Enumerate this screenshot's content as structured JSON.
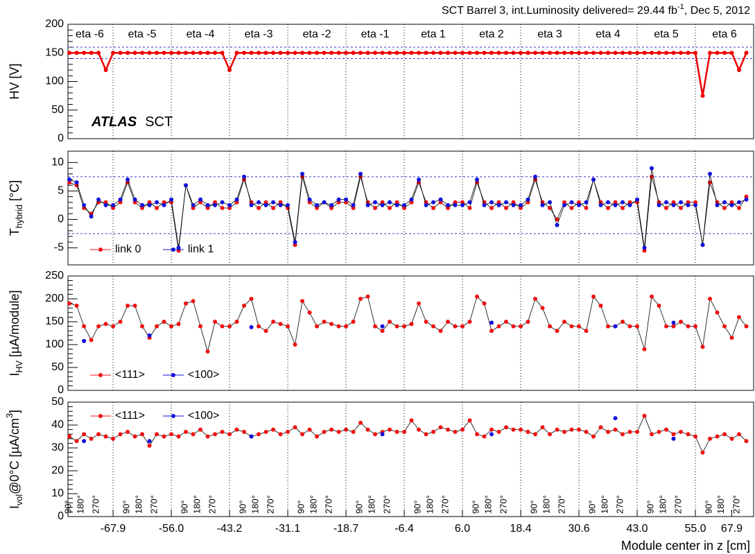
{
  "title": [
    "SCT Barrel 3, int.Luminosity delivered= 29.44 fb",
    "-1",
    ",  Dec 5, 2012"
  ],
  "title_sup": 1,
  "xlabel": "Module center in z [cm]",
  "brand": [
    "ATLAS",
    "SCT"
  ],
  "xlim": [
    1.8,
    96
  ],
  "x": [
    2,
    3,
    4,
    5,
    6,
    7,
    8,
    9,
    10,
    11,
    12,
    13,
    14,
    15,
    16,
    17,
    18,
    19,
    20,
    21,
    22,
    23,
    24,
    25,
    26,
    27,
    28,
    29,
    30,
    31,
    32,
    33,
    34,
    35,
    36,
    37,
    38,
    39,
    40,
    41,
    42,
    43,
    44,
    45,
    46,
    47,
    48,
    49,
    50,
    51,
    52,
    53,
    54,
    55,
    56,
    57,
    58,
    59,
    60,
    61,
    62,
    63,
    64,
    65,
    66,
    67,
    68,
    69,
    70,
    71,
    72,
    73,
    74,
    75,
    76,
    77,
    78,
    79,
    80,
    81,
    82,
    83,
    84,
    85,
    86,
    87,
    88,
    89,
    90,
    91,
    92,
    93,
    94,
    95
  ],
  "segment_edges": [
    8,
    16,
    24,
    32,
    40,
    48,
    56,
    64,
    72,
    80,
    88
  ],
  "segment_labels": [
    {
      "value": 4.8,
      "label": "eta -6"
    },
    {
      "value": 12,
      "label": "eta -5"
    },
    {
      "value": 20,
      "label": "eta -4"
    },
    {
      "value": 28,
      "label": "eta -3"
    },
    {
      "value": 36,
      "label": "eta -2"
    },
    {
      "value": 44,
      "label": "eta -1"
    },
    {
      "value": 52,
      "label": "eta 1"
    },
    {
      "value": 60,
      "label": "eta 2"
    },
    {
      "value": 68,
      "label": "eta 3"
    },
    {
      "value": 76,
      "label": "eta 4"
    },
    {
      "value": 84,
      "label": "eta 5"
    },
    {
      "value": 92,
      "label": "eta 6"
    }
  ],
  "xticks": [
    {
      "value": 8,
      "label": "-67.9"
    },
    {
      "value": 16,
      "label": "-56.0"
    },
    {
      "value": 24,
      "label": "-43.2"
    },
    {
      "value": 32,
      "label": "-31.1"
    },
    {
      "value": 40,
      "label": "-18.7"
    },
    {
      "value": 48,
      "label": "-6.4"
    },
    {
      "value": 56,
      "label": "6.0"
    },
    {
      "value": 64,
      "label": "18.4"
    },
    {
      "value": 72,
      "label": "30.6"
    },
    {
      "value": 80,
      "label": "43.0"
    },
    {
      "value": 88,
      "label": "55.0"
    },
    {
      "value": 93,
      "label": "67.9"
    }
  ],
  "angle_labels": [
    "90°",
    "180°",
    "270°"
  ],
  "angle_positions": [
    1.9,
    3.6,
    5.7
  ],
  "segment_width": 8,
  "segment_count": 12,
  "chart_data": [
    {
      "type": "line",
      "ylabel": [
        "HV [V]"
      ],
      "ylim": [
        0,
        200
      ],
      "yticks": [
        0,
        50,
        100,
        150,
        200
      ],
      "ref_lines": [
        140,
        160
      ],
      "series": [
        {
          "color": "#ee0000",
          "line_color": "#ee0000",
          "values": [
            150,
            150,
            150,
            150,
            150,
            120,
            150,
            150,
            150,
            150,
            150,
            150,
            150,
            150,
            150,
            150,
            150,
            150,
            150,
            150,
            150,
            150,
            120,
            150,
            150,
            150,
            150,
            150,
            150,
            150,
            150,
            150,
            150,
            150,
            150,
            150,
            150,
            150,
            150,
            150,
            150,
            150,
            150,
            150,
            150,
            150,
            150,
            150,
            150,
            150,
            150,
            150,
            150,
            150,
            150,
            150,
            150,
            150,
            150,
            150,
            150,
            150,
            150,
            150,
            150,
            150,
            150,
            150,
            150,
            150,
            150,
            150,
            150,
            150,
            150,
            150,
            150,
            150,
            150,
            150,
            150,
            150,
            150,
            150,
            150,
            150,
            150,
            75,
            150,
            150,
            150,
            150,
            120,
            150
          ]
        }
      ]
    },
    {
      "type": "line",
      "ylabel": [
        "T",
        "hybrid",
        " [°C]"
      ],
      "ylabel_sub": 1,
      "ylim": [
        -8,
        12
      ],
      "yticks": [
        -5,
        0,
        5,
        10
      ],
      "ref_lines": [
        -2.5,
        7.5
      ],
      "legend": "lower left",
      "series": [
        {
          "name": "link 0",
          "color": "#ee1111",
          "line_color": "#000000",
          "values": [
            6.5,
            6,
            2,
            1,
            3,
            3,
            2,
            3,
            6.5,
            3,
            2,
            3,
            2,
            3,
            3,
            -5.5,
            6,
            2,
            3,
            2,
            3,
            2,
            2,
            3,
            7,
            3,
            2,
            3,
            2,
            3,
            2,
            -4.5,
            7.5,
            3,
            2,
            3,
            2,
            3,
            3,
            2,
            7.5,
            3,
            2,
            3,
            2,
            3,
            2,
            3,
            6.5,
            3,
            2,
            3,
            2,
            3,
            3,
            2,
            6.5,
            3,
            2,
            3,
            2,
            3,
            2,
            3,
            7,
            3,
            2,
            0,
            3,
            2,
            3,
            2,
            7,
            3,
            2,
            3,
            2,
            3,
            3,
            -5.5,
            7.5,
            3,
            2,
            3,
            2,
            3,
            3,
            -4.5,
            6.5,
            3,
            2,
            3,
            2,
            4
          ]
        },
        {
          "name": "link 1",
          "color": "#1111dd",
          "line_color": "#000000",
          "values": [
            7,
            6.5,
            2.5,
            0.5,
            3.5,
            2.5,
            2.5,
            3.5,
            7,
            3.5,
            2.5,
            2.5,
            3,
            2.5,
            3.5,
            -5,
            6,
            2.5,
            3.5,
            2.5,
            2.5,
            3,
            2.5,
            3.5,
            7.5,
            2.5,
            3,
            2.5,
            3,
            2.5,
            2.5,
            -4,
            8,
            3.5,
            2.5,
            3,
            2.5,
            3.5,
            3.5,
            2.5,
            8,
            2.5,
            3,
            2.5,
            3,
            2.5,
            2.5,
            3.5,
            7,
            2.5,
            3,
            3.5,
            2.5,
            2.5,
            2.5,
            3,
            7,
            2.5,
            3,
            2.5,
            3,
            2.5,
            2.5,
            3.5,
            7.5,
            2.5,
            3,
            -1,
            2.5,
            3,
            2.5,
            3,
            7,
            2.5,
            3,
            2.5,
            3,
            2.5,
            3.5,
            -5,
            9,
            2.5,
            3,
            2.5,
            3,
            2.5,
            2.5,
            -4.5,
            8,
            2.5,
            3,
            2.5,
            3,
            3.5
          ]
        }
      ]
    },
    {
      "type": "line",
      "ylabel": [
        "I",
        "HV",
        " [µA/module]"
      ],
      "ylabel_sub": 1,
      "ylim": [
        0,
        250
      ],
      "yticks": [
        0,
        50,
        100,
        150,
        200,
        250
      ],
      "legend": "lower left",
      "series": [
        {
          "name": "<111>",
          "color": "#ee1111",
          "line_color": "#000000",
          "values": [
            190,
            185,
            140,
            110,
            140,
            145,
            140,
            150,
            185,
            185,
            140,
            115,
            140,
            150,
            140,
            145,
            190,
            195,
            140,
            85,
            150,
            140,
            140,
            150,
            185,
            200,
            140,
            130,
            150,
            145,
            140,
            100,
            195,
            170,
            140,
            150,
            145,
            140,
            140,
            150,
            200,
            205,
            140,
            130,
            150,
            140,
            140,
            145,
            190,
            150,
            140,
            130,
            150,
            140,
            140,
            150,
            205,
            190,
            130,
            140,
            150,
            140,
            140,
            150,
            200,
            180,
            140,
            130,
            150,
            140,
            140,
            130,
            205,
            185,
            140,
            140,
            150,
            140,
            140,
            90,
            205,
            185,
            140,
            140,
            150,
            140,
            140,
            95,
            200,
            170,
            140,
            115,
            160,
            140
          ]
        },
        {
          "name": "<100>",
          "color": "#1111dd",
          "line_color": "#000000",
          "values": [
            null,
            null,
            108,
            null,
            null,
            null,
            null,
            null,
            null,
            null,
            null,
            120,
            null,
            null,
            null,
            null,
            null,
            null,
            null,
            null,
            null,
            null,
            null,
            null,
            null,
            138,
            null,
            null,
            null,
            null,
            null,
            null,
            null,
            null,
            null,
            null,
            null,
            null,
            null,
            null,
            null,
            null,
            null,
            140,
            null,
            null,
            null,
            null,
            null,
            null,
            null,
            null,
            null,
            null,
            null,
            null,
            null,
            null,
            148,
            null,
            null,
            null,
            null,
            null,
            null,
            null,
            null,
            null,
            null,
            null,
            null,
            null,
            null,
            null,
            null,
            140,
            null,
            null,
            null,
            null,
            null,
            null,
            null,
            148,
            null,
            null,
            null,
            null,
            null,
            null,
            null,
            null,
            null,
            null
          ]
        }
      ]
    },
    {
      "type": "line",
      "ylabel": [
        "I",
        "vol",
        "@0°C [µA/cm",
        "3",
        "]"
      ],
      "ylabel_sub": 1,
      "ylabel_sup": 3,
      "ylim": [
        0,
        50
      ],
      "yticks": [
        0,
        10,
        20,
        30,
        40,
        50
      ],
      "legend": "upper left",
      "series": [
        {
          "name": "<111>",
          "color": "#ee1111",
          "line_color": "#000000",
          "values": [
            35,
            33,
            36,
            34,
            36,
            35,
            34,
            36,
            37,
            35,
            36,
            31,
            36,
            35,
            36,
            35,
            37,
            36,
            38,
            35,
            36,
            37,
            36,
            38,
            37,
            35,
            36,
            37,
            38,
            36,
            37,
            39,
            36,
            38,
            35,
            37,
            38,
            37,
            38,
            37,
            41,
            38,
            36,
            37,
            38,
            37,
            37,
            42,
            38,
            36,
            37,
            39,
            38,
            37,
            38,
            42,
            36,
            35,
            38,
            37,
            39,
            38,
            38,
            37,
            36,
            39,
            36,
            38,
            37,
            38,
            38,
            37,
            35,
            39,
            37,
            38,
            36,
            37,
            37,
            44,
            36,
            37,
            38,
            36,
            37,
            36,
            35,
            28,
            34,
            35,
            36,
            34,
            36,
            33
          ]
        },
        {
          "name": "<100>",
          "color": "#1111dd",
          "line_color": "#000000",
          "values": [
            null,
            null,
            33,
            null,
            null,
            null,
            null,
            null,
            null,
            null,
            null,
            33,
            null,
            null,
            null,
            null,
            null,
            null,
            null,
            null,
            null,
            null,
            null,
            null,
            null,
            35,
            null,
            null,
            null,
            null,
            null,
            null,
            null,
            null,
            null,
            null,
            null,
            null,
            null,
            null,
            null,
            null,
            null,
            36,
            null,
            null,
            null,
            null,
            null,
            null,
            null,
            null,
            null,
            null,
            null,
            null,
            null,
            null,
            36,
            null,
            null,
            null,
            null,
            null,
            null,
            null,
            null,
            null,
            null,
            null,
            null,
            null,
            null,
            null,
            null,
            43,
            null,
            null,
            null,
            null,
            null,
            null,
            null,
            34,
            null,
            null,
            null,
            null,
            null,
            null,
            null,
            null,
            null,
            null
          ]
        }
      ]
    }
  ]
}
